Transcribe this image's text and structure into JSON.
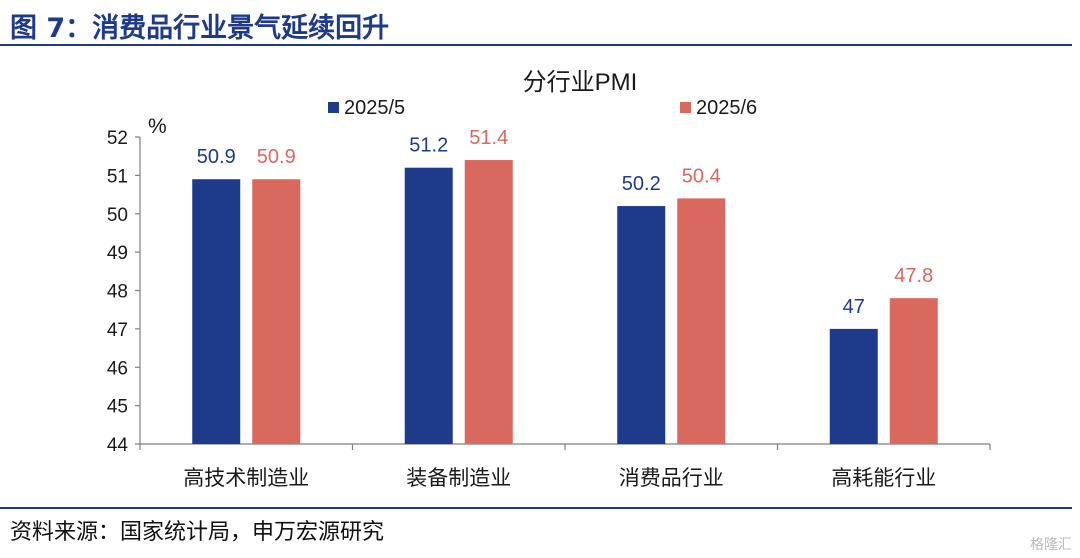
{
  "figure": {
    "title": "图 7：消费品行业景气延续回升",
    "source": "资料来源：国家统计局，申万宏源研究",
    "watermark": "格隆汇"
  },
  "colors": {
    "series_1": "#1e3a8a",
    "series_2": "#d9685f",
    "title_blue": "#1f3a8a",
    "axis": "#7f7f7f"
  },
  "chart_data": {
    "type": "bar",
    "title": "分行业PMI",
    "ylabel": "%",
    "xlabel": "",
    "categories": [
      "高技术制造业",
      "装备制造业",
      "消费品行业",
      "高耗能行业"
    ],
    "series": [
      {
        "name": "2025/5",
        "values": [
          50.9,
          51.2,
          50.2,
          47
        ]
      },
      {
        "name": "2025/6",
        "values": [
          50.9,
          51.4,
          50.4,
          47.8
        ]
      }
    ],
    "ylim": [
      44,
      52
    ],
    "yticks": [
      44,
      45,
      46,
      47,
      48,
      49,
      50,
      51,
      52
    ],
    "grid": false,
    "legend_position": "top",
    "data_labels": true
  }
}
